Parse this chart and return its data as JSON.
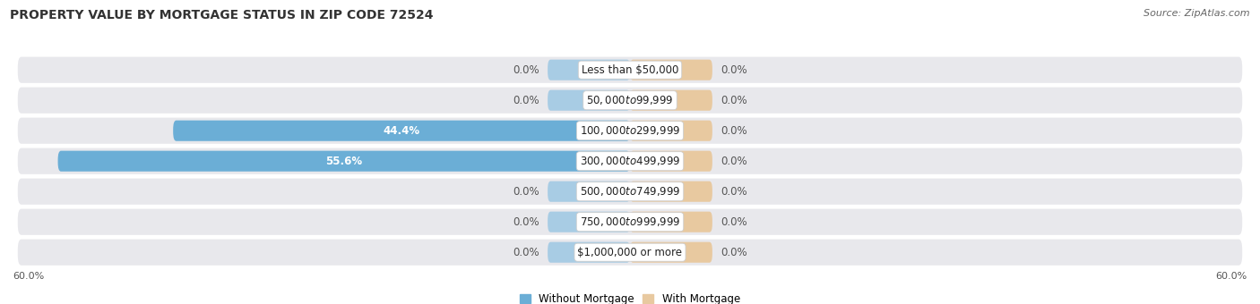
{
  "title": "PROPERTY VALUE BY MORTGAGE STATUS IN ZIP CODE 72524",
  "source": "Source: ZipAtlas.com",
  "categories": [
    "Less than $50,000",
    "$50,000 to $99,999",
    "$100,000 to $299,999",
    "$300,000 to $499,999",
    "$500,000 to $749,999",
    "$750,000 to $999,999",
    "$1,000,000 or more"
  ],
  "without_mortgage": [
    0.0,
    0.0,
    44.4,
    55.6,
    0.0,
    0.0,
    0.0
  ],
  "with_mortgage": [
    0.0,
    0.0,
    0.0,
    0.0,
    0.0,
    0.0,
    0.0
  ],
  "xlim": 60.0,
  "bar_color_left": "#6baed6",
  "bar_color_right": "#e8c9a0",
  "bar_stub_left": "#a8cce4",
  "bar_stub_right": "#e8c9a0",
  "row_bg_color": "#e8e8ec",
  "title_fontsize": 10,
  "source_fontsize": 8,
  "label_fontsize": 8.5,
  "cat_fontsize": 8.5,
  "axis_label_fontsize": 8,
  "legend_fontsize": 8.5
}
